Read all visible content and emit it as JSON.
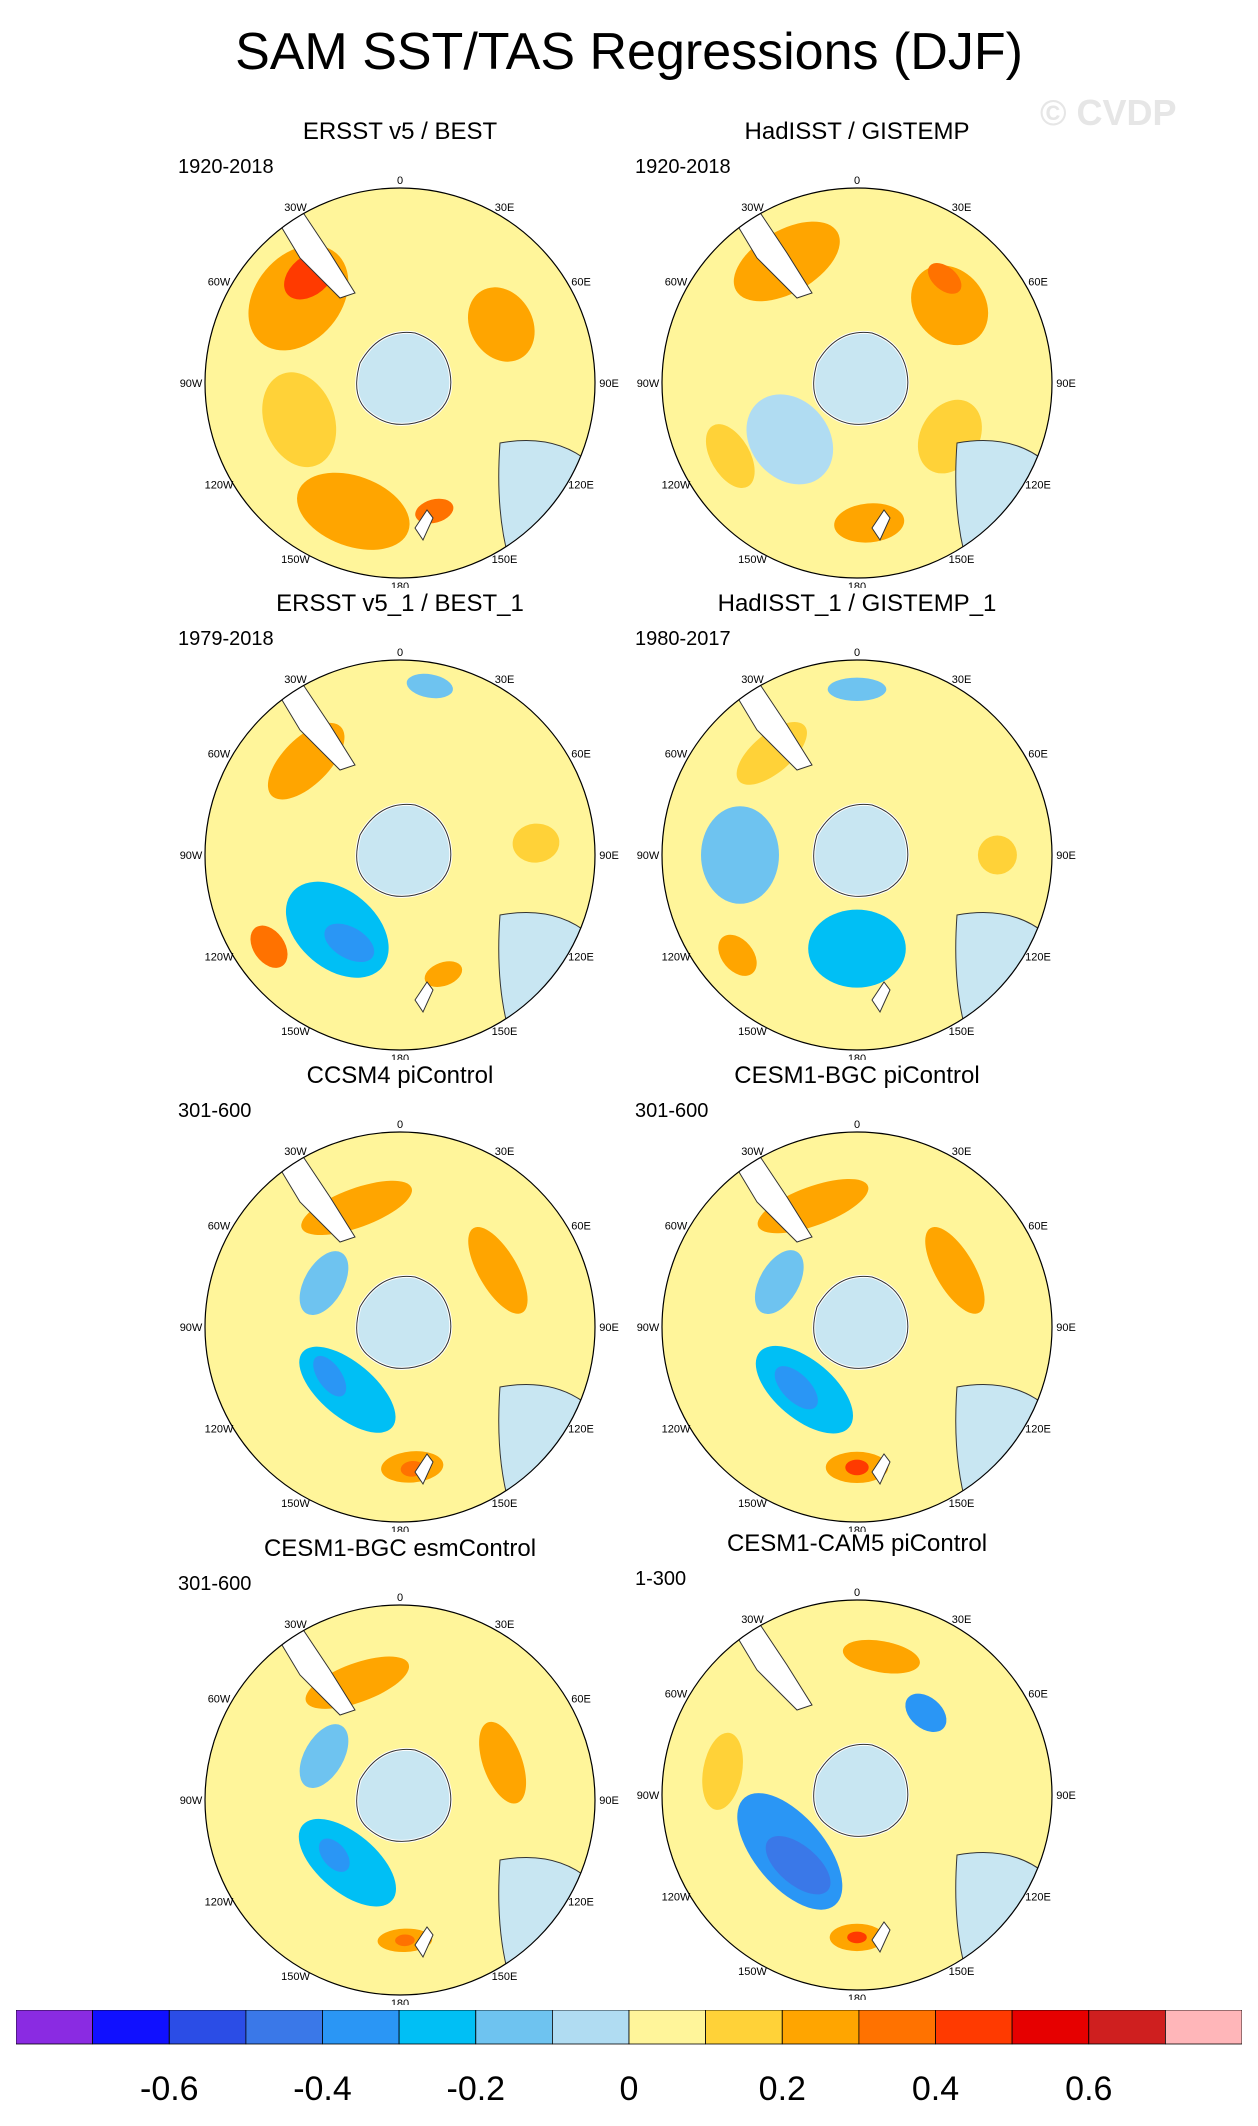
{
  "title": "SAM SST/TAS Regressions (DJF)",
  "watermark": "© CVDP",
  "lon_labels": [
    "0",
    "30E",
    "60E",
    "90E",
    "120E",
    "150E",
    "180",
    "150W",
    "120W",
    "90W",
    "60W",
    "30W"
  ],
  "chart_data": {
    "type": "heatmap",
    "projection": "south-polar-stereographic",
    "panels": [
      {
        "title": "ERSST v5 / BEST",
        "period": "1920-2018",
        "blobs": [
          {
            "level": 0.25,
            "lon": 310,
            "rlat": 0.68,
            "rx": 0.3,
            "ry": 0.22
          },
          {
            "level": 0.45,
            "lon": 320,
            "rlat": 0.72,
            "rx": 0.15,
            "ry": 0.1
          },
          {
            "level": 0.25,
            "lon": 60,
            "rlat": 0.6,
            "rx": 0.2,
            "ry": 0.16
          },
          {
            "level": 0.25,
            "lon": 200,
            "rlat": 0.7,
            "rx": 0.3,
            "ry": 0.18
          },
          {
            "level": 0.35,
            "lon": 165,
            "rlat": 0.68,
            "rx": 0.1,
            "ry": 0.06
          },
          {
            "level": 0.15,
            "lon": 250,
            "rlat": 0.55,
            "rx": 0.25,
            "ry": 0.18
          },
          {
            "level": 0.05,
            "lon": 100,
            "rlat": 0.4,
            "rx": 0.2,
            "ry": 0.15
          }
        ]
      },
      {
        "title": "HadISST / GISTEMP",
        "period": "1920-2018",
        "blobs": [
          {
            "level": 0.25,
            "lon": 330,
            "rlat": 0.72,
            "rx": 0.3,
            "ry": 0.16
          },
          {
            "level": 0.25,
            "lon": 50,
            "rlat": 0.62,
            "rx": 0.22,
            "ry": 0.18
          },
          {
            "level": 0.35,
            "lon": 40,
            "rlat": 0.7,
            "rx": 0.1,
            "ry": 0.06
          },
          {
            "level": -0.05,
            "lon": 230,
            "rlat": 0.45,
            "rx": 0.25,
            "ry": 0.2
          },
          {
            "level": 0.25,
            "lon": 175,
            "rlat": 0.72,
            "rx": 0.18,
            "ry": 0.1
          },
          {
            "level": 0.15,
            "lon": 240,
            "rlat": 0.75,
            "rx": 0.18,
            "ry": 0.1
          },
          {
            "level": 0.15,
            "lon": 120,
            "rlat": 0.55,
            "rx": 0.2,
            "ry": 0.15
          }
        ]
      },
      {
        "title": "ERSST v5_1 / BEST_1",
        "period": "1979-2018",
        "blobs": [
          {
            "level": -0.25,
            "lon": 220,
            "rlat": 0.5,
            "rx": 0.3,
            "ry": 0.2
          },
          {
            "level": -0.35,
            "lon": 210,
            "rlat": 0.52,
            "rx": 0.14,
            "ry": 0.08
          },
          {
            "level": 0.25,
            "lon": 315,
            "rlat": 0.68,
            "rx": 0.25,
            "ry": 0.12
          },
          {
            "level": 0.35,
            "lon": 235,
            "rlat": 0.82,
            "rx": 0.12,
            "ry": 0.08
          },
          {
            "level": -0.15,
            "lon": 10,
            "rlat": 0.88,
            "rx": 0.12,
            "ry": 0.06
          },
          {
            "level": 0.15,
            "lon": 85,
            "rlat": 0.7,
            "rx": 0.1,
            "ry": 0.12
          },
          {
            "level": 0.25,
            "lon": 160,
            "rlat": 0.65,
            "rx": 0.1,
            "ry": 0.06
          }
        ]
      },
      {
        "title": "HadISST_1 / GISTEMP_1",
        "period": "1980-2017",
        "blobs": [
          {
            "level": -0.25,
            "lon": 180,
            "rlat": 0.48,
            "rx": 0.25,
            "ry": 0.2
          },
          {
            "level": -0.15,
            "lon": 270,
            "rlat": 0.6,
            "rx": 0.25,
            "ry": 0.2
          },
          {
            "level": 0.25,
            "lon": 230,
            "rlat": 0.8,
            "rx": 0.12,
            "ry": 0.08
          },
          {
            "level": 0.15,
            "lon": 320,
            "rlat": 0.68,
            "rx": 0.22,
            "ry": 0.1
          },
          {
            "level": -0.15,
            "lon": 0,
            "rlat": 0.85,
            "rx": 0.15,
            "ry": 0.06
          },
          {
            "level": 0.15,
            "lon": 90,
            "rlat": 0.72,
            "rx": 0.1,
            "ry": 0.1
          }
        ]
      },
      {
        "title": "CCSM4 piControl",
        "period": "301-600",
        "blobs": [
          {
            "level": -0.25,
            "lon": 220,
            "rlat": 0.42,
            "rx": 0.3,
            "ry": 0.14
          },
          {
            "level": -0.35,
            "lon": 235,
            "rlat": 0.44,
            "rx": 0.12,
            "ry": 0.06
          },
          {
            "level": 0.25,
            "lon": 340,
            "rlat": 0.65,
            "rx": 0.3,
            "ry": 0.1
          },
          {
            "level": 0.25,
            "lon": 60,
            "rlat": 0.58,
            "rx": 0.25,
            "ry": 0.1
          },
          {
            "level": 0.25,
            "lon": 175,
            "rlat": 0.72,
            "rx": 0.16,
            "ry": 0.08
          },
          {
            "level": 0.35,
            "lon": 175,
            "rlat": 0.73,
            "rx": 0.06,
            "ry": 0.04
          },
          {
            "level": -0.15,
            "lon": 300,
            "rlat": 0.45,
            "rx": 0.18,
            "ry": 0.1
          }
        ]
      },
      {
        "title": "CESM1-BGC piControl",
        "period": "301-600",
        "blobs": [
          {
            "level": -0.25,
            "lon": 220,
            "rlat": 0.42,
            "rx": 0.3,
            "ry": 0.15
          },
          {
            "level": -0.35,
            "lon": 225,
            "rlat": 0.44,
            "rx": 0.14,
            "ry": 0.07
          },
          {
            "level": 0.25,
            "lon": 340,
            "rlat": 0.66,
            "rx": 0.3,
            "ry": 0.1
          },
          {
            "level": 0.25,
            "lon": 60,
            "rlat": 0.58,
            "rx": 0.25,
            "ry": 0.1
          },
          {
            "level": 0.25,
            "lon": 180,
            "rlat": 0.72,
            "rx": 0.16,
            "ry": 0.08
          },
          {
            "level": 0.45,
            "lon": 180,
            "rlat": 0.72,
            "rx": 0.06,
            "ry": 0.04
          },
          {
            "level": -0.15,
            "lon": 300,
            "rlat": 0.46,
            "rx": 0.18,
            "ry": 0.1
          }
        ]
      },
      {
        "title": "CESM1-BGC esmControl",
        "period": "301-600",
        "blobs": [
          {
            "level": -0.25,
            "lon": 220,
            "rlat": 0.42,
            "rx": 0.3,
            "ry": 0.15
          },
          {
            "level": -0.35,
            "lon": 230,
            "rlat": 0.44,
            "rx": 0.1,
            "ry": 0.06
          },
          {
            "level": 0.25,
            "lon": 340,
            "rlat": 0.64,
            "rx": 0.28,
            "ry": 0.1
          },
          {
            "level": 0.25,
            "lon": 70,
            "rlat": 0.56,
            "rx": 0.22,
            "ry": 0.1
          },
          {
            "level": 0.25,
            "lon": 178,
            "rlat": 0.72,
            "rx": 0.14,
            "ry": 0.06
          },
          {
            "level": 0.35,
            "lon": 178,
            "rlat": 0.72,
            "rx": 0.05,
            "ry": 0.03
          },
          {
            "level": -0.15,
            "lon": 300,
            "rlat": 0.45,
            "rx": 0.18,
            "ry": 0.1
          }
        ]
      },
      {
        "title": "CESM1-CAM5 piControl",
        "period": "1-300",
        "blobs": [
          {
            "level": -0.35,
            "lon": 230,
            "rlat": 0.45,
            "rx": 0.36,
            "ry": 0.18
          },
          {
            "level": -0.45,
            "lon": 220,
            "rlat": 0.47,
            "rx": 0.2,
            "ry": 0.1
          },
          {
            "level": -0.35,
            "lon": 40,
            "rlat": 0.55,
            "rx": 0.12,
            "ry": 0.08
          },
          {
            "level": 0.25,
            "lon": 10,
            "rlat": 0.72,
            "rx": 0.2,
            "ry": 0.08
          },
          {
            "level": 0.15,
            "lon": 280,
            "rlat": 0.7,
            "rx": 0.2,
            "ry": 0.1
          },
          {
            "level": 0.25,
            "lon": 180,
            "rlat": 0.73,
            "rx": 0.14,
            "ry": 0.07
          },
          {
            "level": 0.45,
            "lon": 180,
            "rlat": 0.73,
            "rx": 0.05,
            "ry": 0.03
          }
        ]
      }
    ],
    "colorbar": {
      "colors": [
        "#8a2be2",
        "#1010ff",
        "#2b4de6",
        "#3a78e8",
        "#2a96f5",
        "#00bff5",
        "#6ec3f0",
        "#b0dcf2",
        "#fff59a",
        "#ffd238",
        "#ffa500",
        "#ff7200",
        "#ff3a00",
        "#e60000",
        "#cf1f1f",
        "#ffb6b9"
      ],
      "levels": [
        -0.7,
        -0.6,
        -0.5,
        -0.4,
        -0.3,
        -0.2,
        -0.1,
        0,
        0.1,
        0.2,
        0.3,
        0.4,
        0.5,
        0.6,
        0.7
      ],
      "labels": [
        "-0.6",
        "-0.4",
        "-0.2",
        "0",
        "0.2",
        "0.4",
        "0.6"
      ],
      "label_levels": [
        -0.6,
        -0.4,
        -0.2,
        0,
        0.2,
        0.4,
        0.6
      ]
    }
  }
}
